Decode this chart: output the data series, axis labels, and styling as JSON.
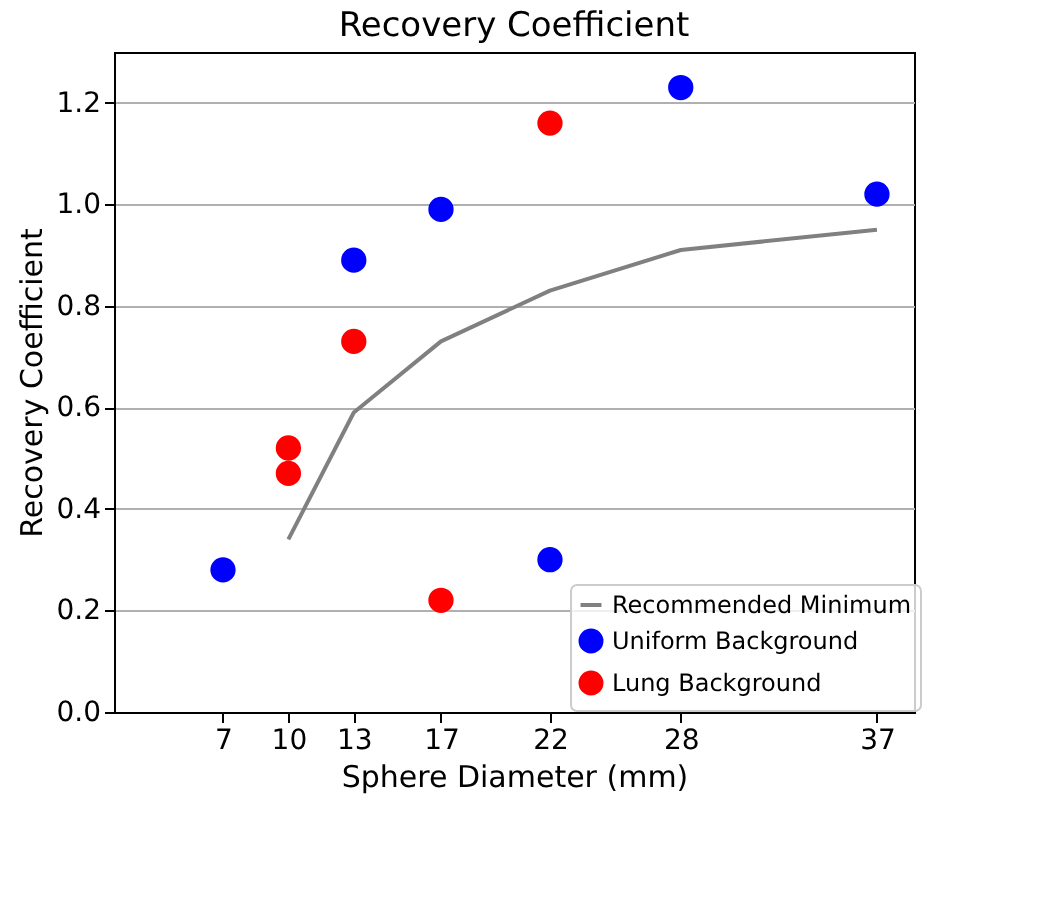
{
  "chart_data": {
    "type": "scatter",
    "title": "Recovery Coefficient",
    "xlabel": "Sphere Diameter (mm)",
    "ylabel": "Recovery Coefficient",
    "xlim": [
      2,
      38.7
    ],
    "xticks": [
      7,
      10,
      13,
      17,
      22,
      28,
      37
    ],
    "ylim": [
      0,
      1.3
    ],
    "yticks": [
      {
        "value": 0,
        "label": "0.0"
      },
      {
        "value": 0.2,
        "label": "0.2"
      },
      {
        "value": 0.4,
        "label": "0.4"
      },
      {
        "value": 0.6,
        "label": "0.6"
      },
      {
        "value": 0.8,
        "label": "0.8"
      },
      {
        "value": 1,
        "label": "1.0"
      },
      {
        "value": 1.2,
        "label": "1.2"
      }
    ],
    "grid": "y",
    "legend": "bottom right",
    "marker": "circle",
    "series": [
      {
        "name": "Recommended Minimum",
        "type": "line",
        "marker": "none",
        "color": "#808080",
        "x": [
          10,
          13,
          17,
          22,
          28,
          37
        ],
        "values": [
          0.34,
          0.59,
          0.73,
          0.83,
          0.91,
          0.95
        ]
      },
      {
        "name": "Uniform Background",
        "color": "#0000ff",
        "x": [
          7,
          13,
          17,
          22,
          28,
          37
        ],
        "values": [
          0.28,
          0.89,
          0.99,
          0.3,
          1.23,
          1.02
        ]
      },
      {
        "name": "Lung Background",
        "color": "#ff0000",
        "x": [
          10,
          10,
          13,
          17,
          22
        ],
        "values": [
          0.52,
          0.47,
          0.73,
          0.22,
          1.16
        ]
      }
    ]
  }
}
